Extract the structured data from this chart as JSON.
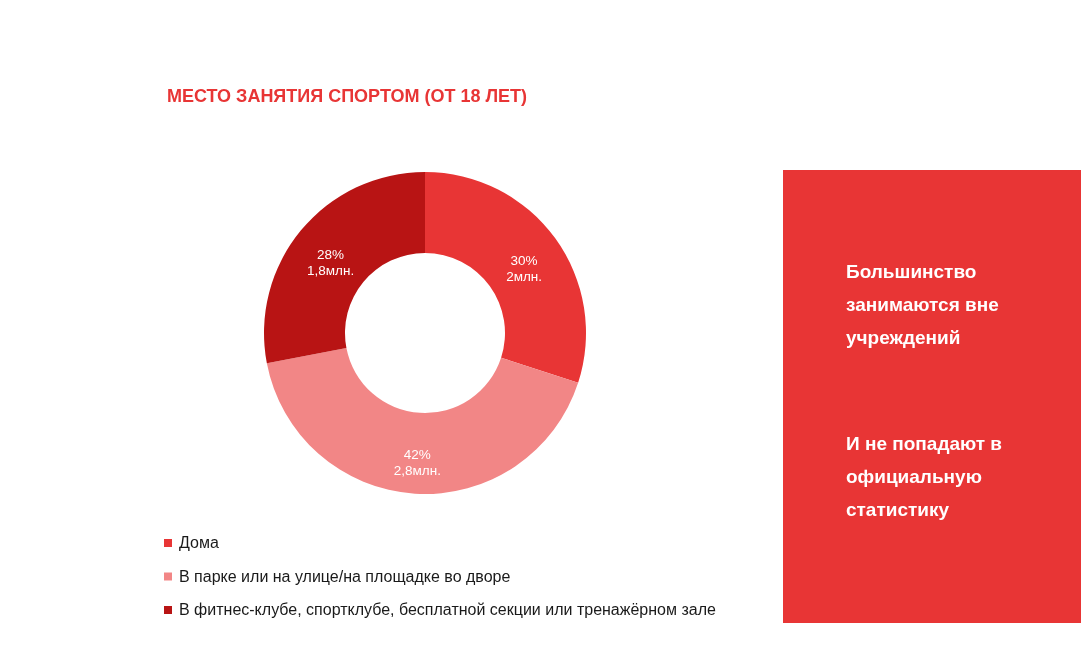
{
  "chart_data": [
    {
      "type": "donut",
      "title": "МЕСТО ЗАНЯТИЯ СПОРТОМ (ОТ 18 ЛЕТ)",
      "categories": [
        "Дома",
        "В парке или на улице/на площадке во дворе",
        "В фитнес-клубе, спортклубе, бесплатной секции или тренажёрном зале"
      ],
      "values": [
        30,
        42,
        28
      ],
      "colors": [
        "#e83535",
        "#f28686",
        "#b81414"
      ],
      "value_labels": [
        "30%\n2млн.",
        "42%\n2,8млн.",
        "28%\n1,8млн."
      ],
      "legend": "bottom left"
    },
    {
      "type": "other",
      "color": "#e83535",
      "annotations": [
        "Большинство\nзанимаются вне\nучреждений",
        "И не попадают в\nофициальную\nстатистику"
      ]
    }
  ]
}
